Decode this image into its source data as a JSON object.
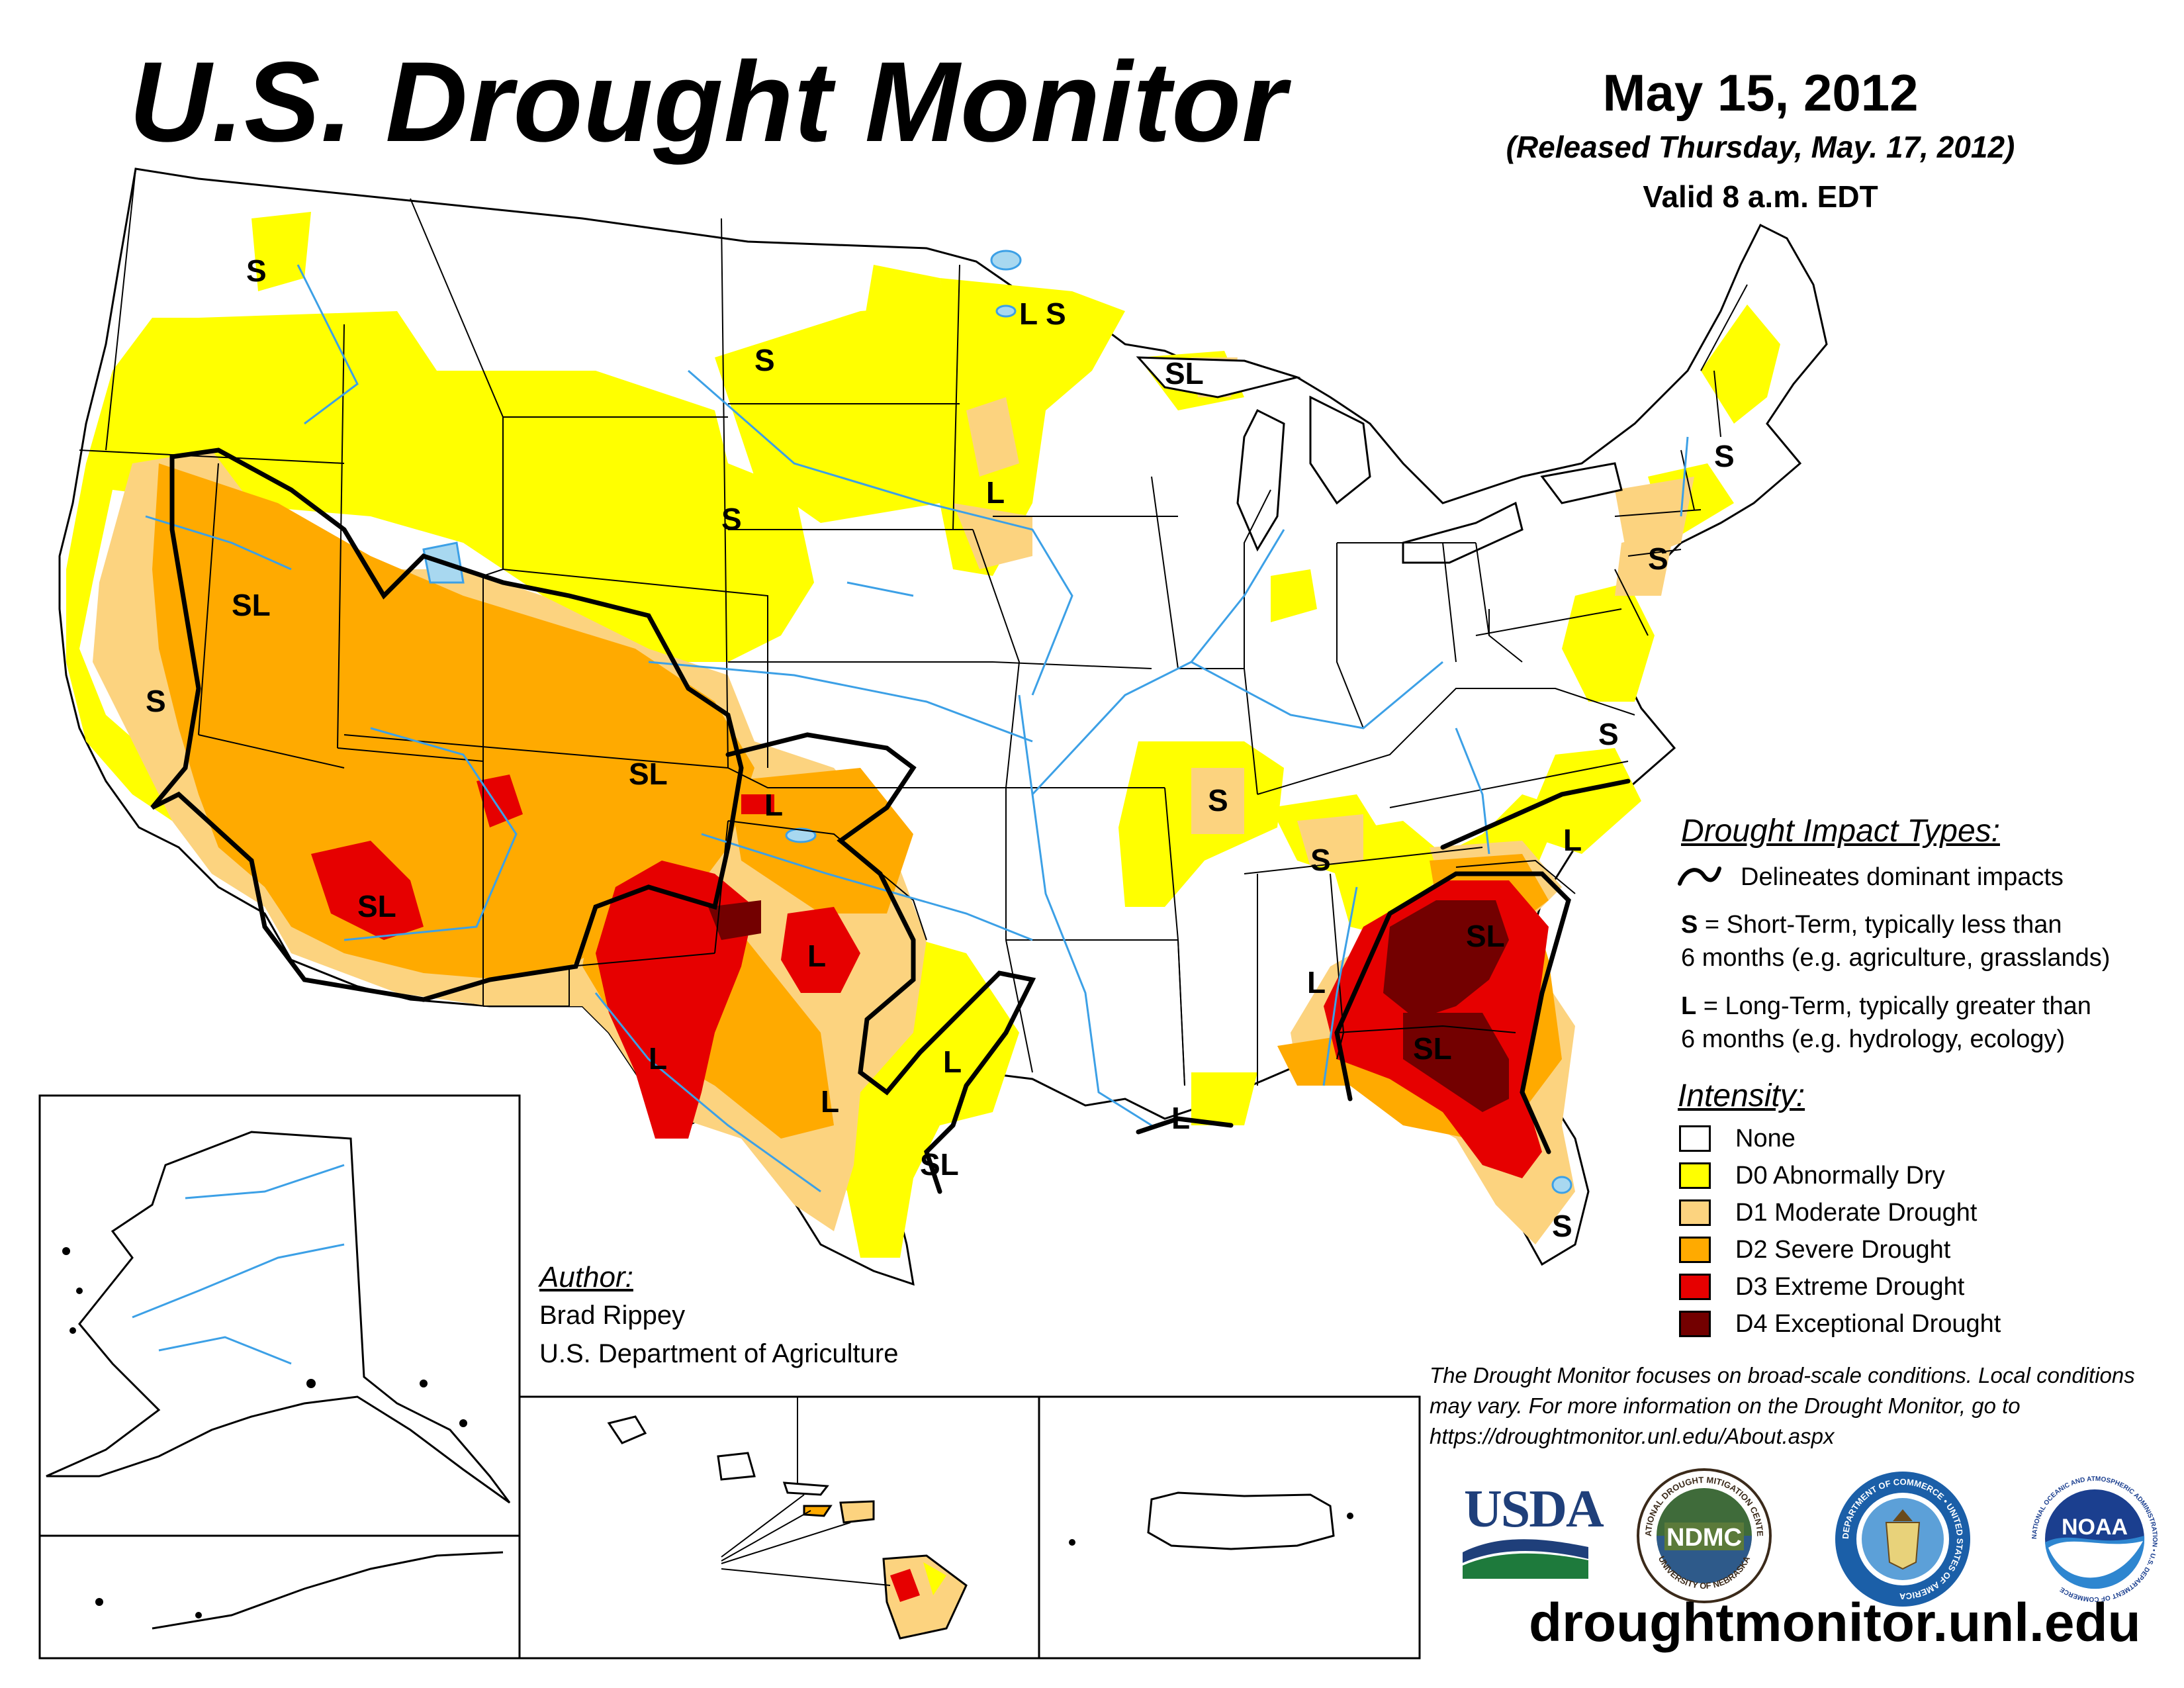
{
  "header": {
    "title": "U.S. Drought Monitor",
    "date": "May 15, 2012",
    "released": "(Released Thursday, May. 17, 2012)",
    "valid": "Valid 8 a.m. EDT"
  },
  "impact_types": {
    "heading": "Drought Impact Types:",
    "delineates": "Delineates dominant impacts",
    "short_term_code": "S",
    "short_term_line1": " = Short-Term, typically less than",
    "short_term_line2": "6 months (e.g. agriculture, grasslands)",
    "long_term_code": "L",
    "long_term_line1": " = Long-Term, typically greater than",
    "long_term_line2": "6 months (e.g. hydrology, ecology)"
  },
  "intensity": {
    "heading": "Intensity:",
    "items": [
      {
        "label": "None",
        "color": "#FFFFFF"
      },
      {
        "label": "D0 Abnormally Dry",
        "color": "#FFFF00"
      },
      {
        "label": "D1 Moderate Drought",
        "color": "#FCD37F"
      },
      {
        "label": "D2 Severe Drought",
        "color": "#FFAA00"
      },
      {
        "label": "D3 Extreme Drought",
        "color": "#E60000"
      },
      {
        "label": "D4 Exceptional Drought",
        "color": "#730000"
      }
    ]
  },
  "author": {
    "heading": "Author:",
    "name": "Brad Rippey",
    "org": "U.S. Department of Agriculture"
  },
  "disclaimer": "The Drought Monitor focuses on broad-scale conditions. Local conditions may vary. For more information on the Drought Monitor, go to https://droughtmonitor.unl.edu/About.aspx",
  "logos": {
    "usda": "USDA",
    "ndmc": "NDMC",
    "ndmc_ring_top": "NATIONAL DROUGHT MITIGATION CENTER",
    "ndmc_ring_bottom": "UNIVERSITY OF NEBRASKA",
    "doc_ring": "DEPARTMENT OF COMMERCE • UNITED STATES OF AMERICA",
    "noaa": "NOAA",
    "noaa_ring": "NATIONAL OCEANIC AND ATMOSPHERIC ADMINISTRATION • U.S. DEPARTMENT OF COMMERCE"
  },
  "website": "droughtmonitor.unl.edu",
  "map_labels": [
    "S",
    "S",
    "S",
    "S",
    "SL",
    "S",
    "SL",
    "L",
    "L",
    "S",
    "SL",
    "L",
    "SL",
    "L",
    "L",
    "L",
    "L",
    "SL",
    "S",
    "S",
    "S",
    "L",
    "S",
    "L",
    "SL",
    "SL",
    "L",
    "S",
    "L",
    "S"
  ],
  "colors": {
    "none": "#FFFFFF",
    "d0": "#FFFF00",
    "d1": "#FCD37F",
    "d2": "#FFAA00",
    "d3": "#E60000",
    "d4": "#730000",
    "water": "#3CA0E6",
    "lake": "#A8D8F0"
  }
}
